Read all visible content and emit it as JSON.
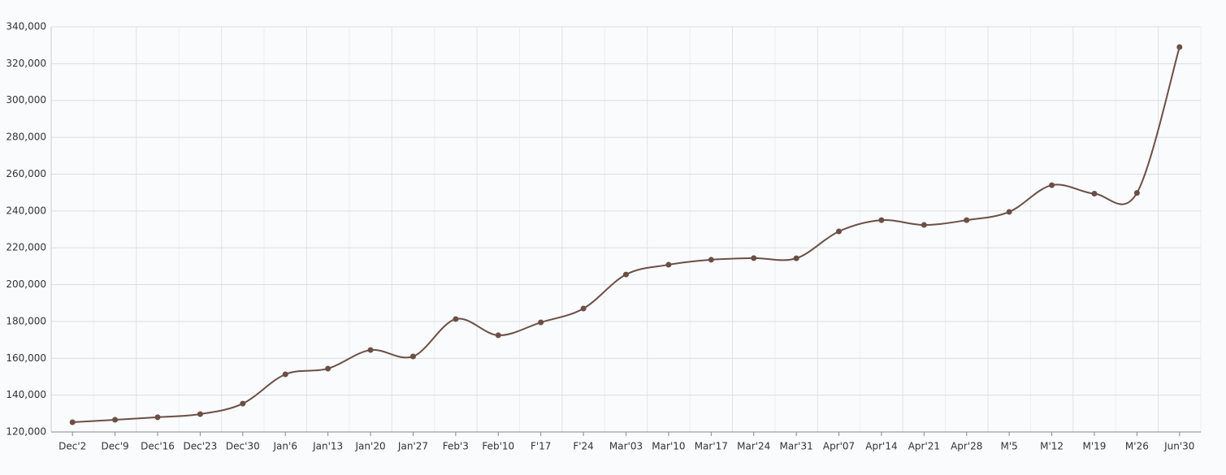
{
  "chart_data": {
    "type": "line",
    "categories": [
      "Dec'2",
      "Dec'9",
      "Dec'16",
      "Dec'23",
      "Dec'30",
      "Jan'6",
      "Jan'13",
      "Jan'20",
      "Jan'27",
      "Feb'3",
      "Feb'10",
      "F'17",
      "F'24",
      "Mar'03",
      "Mar'10",
      "Mar'17",
      "Mar'24",
      "Mar'31",
      "Apr'07",
      "Apr'14",
      "Apr'21",
      "Apr'28",
      "M'5",
      "M'12",
      "M'19",
      "M'26",
      "Jun'30"
    ],
    "values": [
      125300,
      126600,
      128000,
      129700,
      135400,
      151300,
      154400,
      164500,
      161000,
      181300,
      172500,
      179500,
      187000,
      205500,
      210800,
      213500,
      214400,
      214300,
      228900,
      235000,
      232400,
      235000,
      239500,
      254000,
      249400,
      249800,
      329000
    ],
    "color": "#6b4f45",
    "ylim": [
      120000,
      340000
    ],
    "yticks": [
      {
        "value": 120000,
        "label": "120,000"
      },
      {
        "value": 140000,
        "label": "140,000"
      },
      {
        "value": 160000,
        "label": "160,000"
      },
      {
        "value": 180000,
        "label": "180,000"
      },
      {
        "value": 200000,
        "label": "200,000"
      },
      {
        "value": 220000,
        "label": "220,000"
      },
      {
        "value": 240000,
        "label": "240,000"
      },
      {
        "value": 260000,
        "label": "260,000"
      },
      {
        "value": 280000,
        "label": "280,000"
      },
      {
        "value": 300000,
        "label": "300,000"
      },
      {
        "value": 320000,
        "label": "320,000"
      },
      {
        "value": 340000,
        "label": "340,000"
      }
    ],
    "grid": true
  }
}
